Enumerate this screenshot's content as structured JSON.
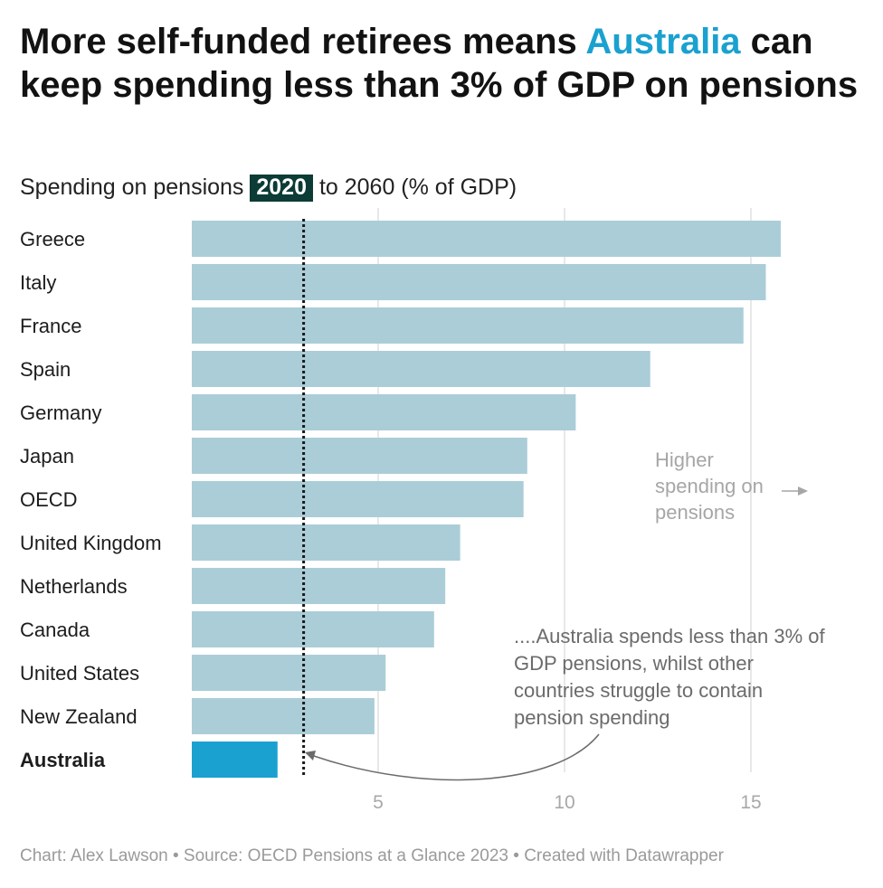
{
  "title": {
    "before": "More self-funded retirees means ",
    "highlight": "Australia",
    "after": " can keep spending less than 3% of GDP on pensions"
  },
  "subtitle": {
    "before": "Spending on pensions ",
    "tag": "2020",
    "after": " to 2060 (% of GDP)"
  },
  "chart_data": {
    "type": "bar",
    "orientation": "horizontal",
    "categories": [
      "Greece",
      "Italy",
      "France",
      "Spain",
      "Germany",
      "Japan",
      "OECD",
      "United Kingdom",
      "Netherlands",
      "Canada",
      "United States",
      "New Zealand",
      "Australia"
    ],
    "values": [
      15.8,
      15.4,
      14.8,
      12.3,
      10.3,
      9.0,
      8.9,
      7.2,
      6.8,
      6.5,
      5.2,
      4.9,
      2.3
    ],
    "highlight_category": "Australia",
    "reference_line": 3,
    "xlim": [
      0,
      17.5
    ],
    "xticks": [
      5,
      10,
      15
    ],
    "grid": true,
    "annotations": [
      {
        "lines": [
          "Higher",
          "spending on",
          "pensions"
        ]
      },
      {
        "lines": [
          "....Australia spends less than 3% of",
          "GDP pensions, whilst other",
          "countries struggle to contain",
          "pension spending"
        ]
      }
    ]
  },
  "colors": {
    "bar": "#abcdd8",
    "highlight_bar": "#1aa1d0",
    "title_highlight": "#1aa1d0",
    "tag_background": "#0d3b36",
    "grid": "#e1e1e1",
    "annotation": "#6b6b6b",
    "muted_annotation": "#a6a6a6",
    "axis_text": "#a8a8a8",
    "reference_line": "#1a1a1a"
  },
  "footer": "Chart: Alex Lawson • Source: OECD Pensions at a Glance 2023  • Created with Datawrapper"
}
